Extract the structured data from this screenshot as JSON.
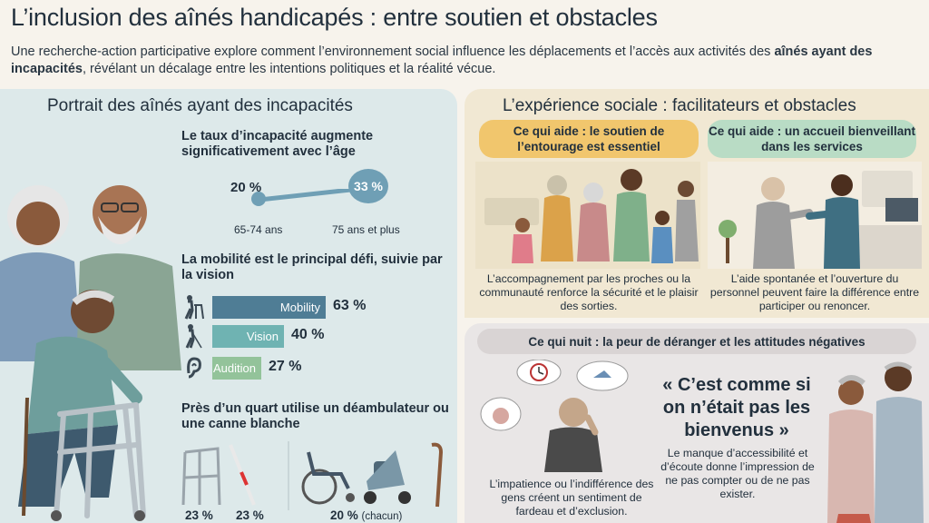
{
  "header": {
    "title": "L’inclusion des aînés handicapés : entre soutien et obstacles",
    "intro_part1": "Une recherche-action participative explore comment l’environnement social influence les déplacements et l’accès aux activités des ",
    "intro_bold": "aînés ayant des incapacités",
    "intro_part2": ", révélant un décalage entre les intentions politiques et la réalité vécue."
  },
  "portrait": {
    "title": "Portrait des aînés ayant des incapacités",
    "age": {
      "heading": "Le taux d’incapacité augmente significativement avec l’âge",
      "low_value": "20 %",
      "high_value": "33 %",
      "low_label": "65-74 ans",
      "high_label": "75 ans et plus"
    },
    "mobility": {
      "heading": "La mobilité est le principal défi, suivie par la vision",
      "bars": [
        {
          "label": "Mobility",
          "value": 63,
          "display": "63 %",
          "color": "#4f7d95",
          "icon": "walker-person-icon"
        },
        {
          "label": "Vision",
          "value": 40,
          "display": "40 %",
          "color": "#6fb3b2",
          "icon": "cane-person-icon"
        },
        {
          "label": "Audition",
          "value": 27,
          "display": "27 %",
          "color": "#93c39a",
          "icon": "ear-icon"
        }
      ]
    },
    "aids": {
      "heading": "Près d’un quart utilise un déambulateur ou une canne blanche",
      "walker_pct": "23 %",
      "cane_pct": "23 %",
      "other_pct": "20 %",
      "other_note": "(chacun)"
    }
  },
  "social": {
    "title": "L’expérience sociale : facilitateurs et obstacles",
    "help1": {
      "label": "Ce qui aide : le soutien de l’entourage est essentiel",
      "caption": "L’accompagnement par les proches ou la communauté renforce la sécurité et le plaisir des sorties."
    },
    "help2": {
      "label": "Ce qui aide : un accueil bienveillant dans les services",
      "caption": "L’aide spontanée et l’ouverture du personnel peuvent faire la différence entre participer ou renoncer."
    }
  },
  "harm": {
    "label": "Ce qui nuit : la peur de déranger et les attitudes négatives",
    "quote": "« C’est comme si on n’était pas les bienvenus »",
    "caption_left": "L’impatience ou l’indifférence des gens créent un sentiment de fardeau et d’exclusion.",
    "caption_right": "Le manque d’accessibilité et d’écoute donne l’impression de ne pas compter ou de ne pas exister."
  }
}
